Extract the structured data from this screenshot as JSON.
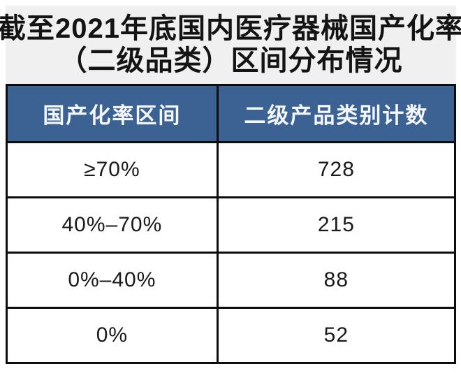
{
  "title": {
    "line1": "截至2021年底国内医疗器械国产化率",
    "line2": "（二级品类）区间分布情况"
  },
  "table": {
    "headers": [
      "国产化率区间",
      "二级产品类别计数"
    ],
    "rows": [
      {
        "range": "≥70%",
        "count": "728"
      },
      {
        "range": "40%–70%",
        "count": "215"
      },
      {
        "range": "0%–40%",
        "count": "88"
      },
      {
        "range": "0%",
        "count": "52"
      }
    ]
  },
  "colors": {
    "header_bg": "#3c6294",
    "header_text": "#f4f8fc",
    "title_band_bg": "#f0f0f1",
    "border": "#0d0d0d",
    "body_text": "#1a1a1a"
  },
  "chart_data": {
    "type": "table",
    "title": "截至2021年底国内医疗器械国产化率（二级品类）区间分布情况",
    "columns": [
      "国产化率区间",
      "二级产品类别计数"
    ],
    "rows": [
      [
        "≥70%",
        728
      ],
      [
        "40%–70%",
        215
      ],
      [
        "0%–40%",
        88
      ],
      [
        "0%",
        52
      ]
    ],
    "layout_hints": {
      "header_style": "blue-band-white-text",
      "grid": "heavy-black-borders",
      "alignment": "center"
    }
  }
}
